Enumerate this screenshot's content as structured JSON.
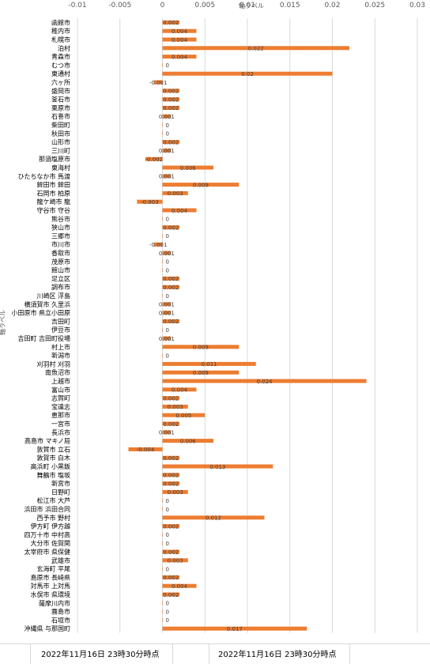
{
  "chart_data": {
    "type": "bar",
    "orientation": "horizontal",
    "title": "",
    "xlabel": "軸ラベル",
    "ylabel": "軸ラベル",
    "xlim": [
      -0.01,
      0.03
    ],
    "xticks": [
      {
        "value": -0.01,
        "label": "-0.01"
      },
      {
        "value": -0.005,
        "label": "-0.005"
      },
      {
        "value": 0,
        "label": "0"
      },
      {
        "value": 0.005,
        "label": "0.005"
      },
      {
        "value": 0.01,
        "label": "0.01"
      },
      {
        "value": 0.015,
        "label": "0.015"
      },
      {
        "value": 0.02,
        "label": "0.02"
      },
      {
        "value": 0.025,
        "label": "0.025"
      },
      {
        "value": 0.03,
        "label": "0.03"
      }
    ],
    "grid": true,
    "bar_color": "#ED7D31",
    "categories": [
      "函館市",
      "稚内市",
      "札幌市",
      "泊村",
      "青森市",
      "むつ市",
      "東通村",
      "六ヶ所",
      "盛岡市",
      "釜石市",
      "栗原市",
      "石巻市",
      "柴田町",
      "秋田市",
      "山形市",
      "三川町",
      "那須塩原市",
      "東海村",
      "ひたちなか市 馬渡",
      "鉾田市 鉾田",
      "石岡市 柏原",
      "龍ケ崎市 龍",
      "守谷市 守谷",
      "熊谷市",
      "狭山市",
      "三郷市",
      "市川市",
      "香取市",
      "茂原市",
      "館山市",
      "足立区",
      "調布市",
      "川崎区 浮島",
      "横須賀市 久里浜",
      "小田原市 県立小田原",
      "吉田町",
      "伊豆市",
      "吉田町 吉田町役場",
      "村上市",
      "新潟市",
      "刈羽村 刈羽",
      "南魚沼市",
      "上越市",
      "富山市",
      "志賀町",
      "宝達志",
      "恵那市",
      "一宮市",
      "長浜市",
      "高島市 マキノ局",
      "敦賀市 立石",
      "敦賀市 白木",
      "高浜町 小黒飯",
      "舞鶴市 塩坂",
      "新宮市",
      "日野町",
      "松江市 大芦",
      "浜田市 浜田合同",
      "西予市 野村",
      "伊方町 伊方越",
      "四万十市 中村高",
      "大分市 佐賀関",
      "太宰府市 県保健",
      "武雄市",
      "玄海町 平尾",
      "島原市 長崎県",
      "対馬市 上対馬",
      "水俣市 県環境",
      "薩摩川内市",
      "霧島市",
      "石垣市",
      "沖縄県 与那国町"
    ],
    "values": [
      0.002,
      0.004,
      0.004,
      0.022,
      0.004,
      0,
      0.02,
      -0.001,
      0.002,
      0.002,
      0.002,
      0.001,
      0,
      0,
      0.002,
      0.001,
      -0.002,
      0.006,
      0.001,
      0.009,
      0.003,
      -0.003,
      0.004,
      0,
      0.002,
      0,
      -0.001,
      0.001,
      0,
      0,
      0.002,
      0.002,
      0,
      0.001,
      0.001,
      0.002,
      0,
      0.001,
      0.009,
      0,
      0.011,
      0.009,
      0.024,
      0.004,
      0.002,
      0.003,
      0.005,
      0.002,
      0.001,
      0.006,
      -0.004,
      0.002,
      0.013,
      0.002,
      0.002,
      0.003,
      0,
      0,
      0.012,
      0.002,
      0,
      0,
      0.002,
      0.003,
      0,
      0.002,
      0.004,
      0.002,
      0,
      0,
      0,
      0.017
    ],
    "labels": [
      "0.002",
      "0.004",
      "0.004",
      "0.022",
      "0.004",
      "0",
      "0.02",
      "-0.001",
      "0.002",
      "0.002",
      "0.002",
      "0.001",
      "0",
      "0",
      "0.002",
      "0.001",
      "-0.002",
      "0.006",
      "0.001",
      "0.009",
      "0.003",
      "-0.003",
      "0.004",
      "0",
      "0.002",
      "0",
      "-0.001",
      "0.001",
      "0",
      "0",
      "0.002",
      "0.002",
      "0",
      "0.001",
      "0.001",
      "0.002",
      "0",
      "0.001",
      "0.009",
      "0",
      "0.011",
      "0.009",
      "0.024",
      "0.004",
      "0.002",
      "0.003",
      "0.005",
      "0.002",
      "0.001",
      "0.006",
      "-0.004",
      "0.002",
      "0.013",
      "0.002",
      "0.002",
      "0.003",
      "0",
      "0",
      "0.012",
      "0.002",
      "0",
      "0",
      "0.002",
      "0.003",
      "0",
      "0.002",
      "0.004",
      "0.002",
      "0",
      "0",
      "0",
      "0.017"
    ]
  },
  "footer": {
    "left_label": "2022年11月16日 23時30分時点",
    "right_label": "2022年11月16日 23時30分時点"
  }
}
